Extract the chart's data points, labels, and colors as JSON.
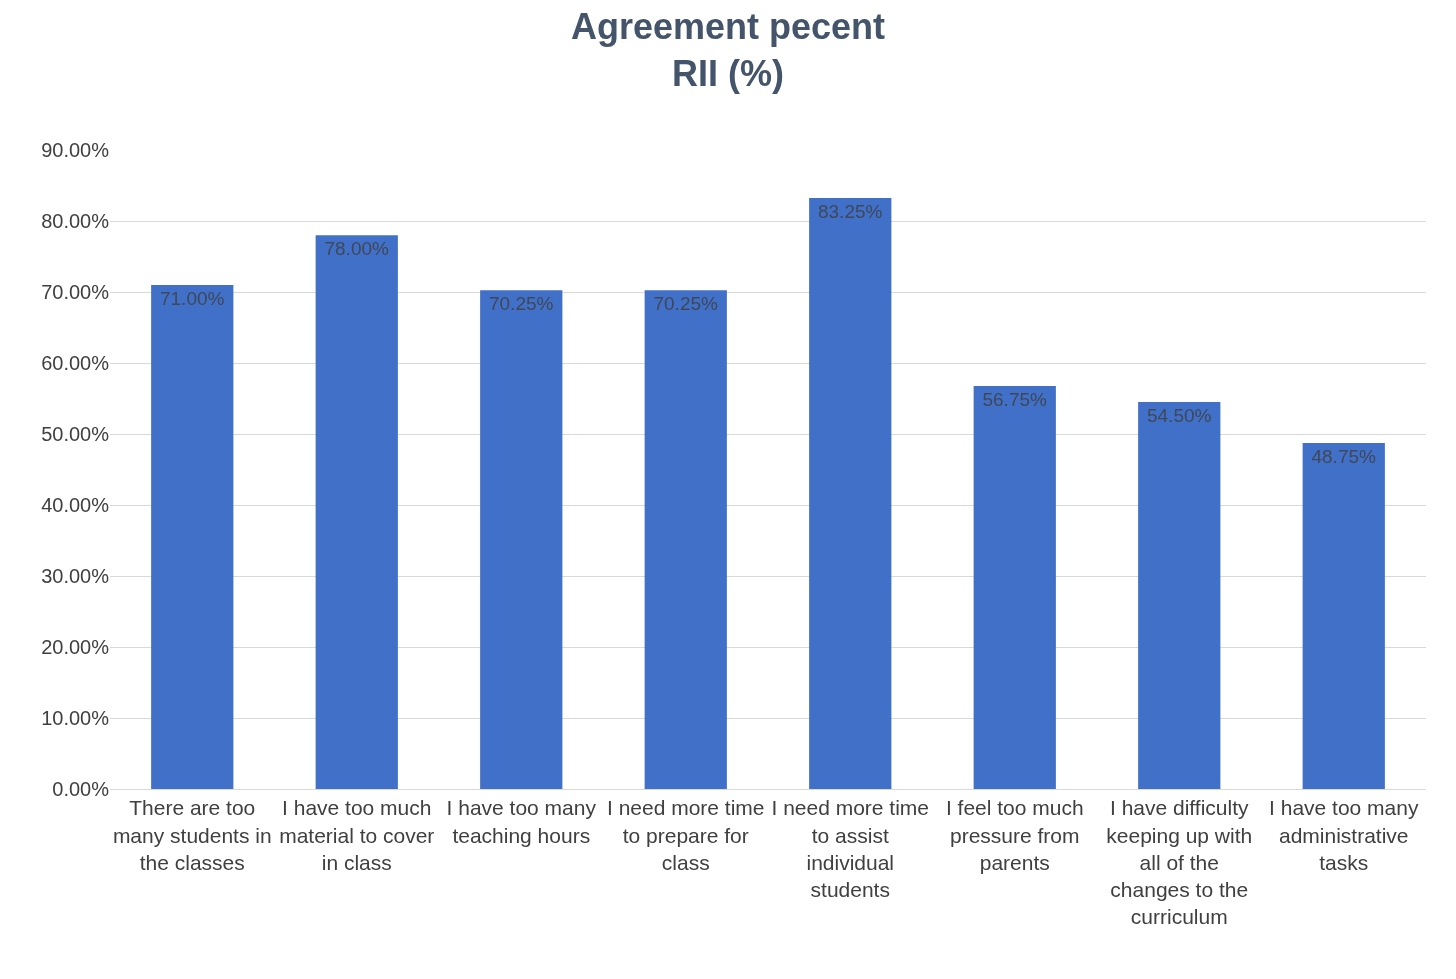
{
  "chart_data": {
    "type": "bar",
    "title": "Agreement pecent\nRII (%)",
    "categories": [
      "There are too many students in the classes",
      "I have too much material to cover in class",
      "I have too many teaching hours",
      "I need more time to prepare for class",
      "I need more time to assist individual students",
      "I feel too much pressure from parents",
      "I have difficulty keeping up with all of the changes to the curriculum",
      "I have too many administrative tasks"
    ],
    "values": [
      71,
      78,
      70.25,
      70.25,
      83.25,
      56.75,
      54.5,
      48.75
    ],
    "value_labels": [
      "71.00%",
      "78.00%",
      "70.25%",
      "70.25%",
      "83.25%",
      "56.75%",
      "54.50%",
      "48.75%"
    ],
    "color": "#4070c8",
    "ylim": [
      0,
      90
    ],
    "yticks": [
      {
        "value": 0,
        "label": "0.00%"
      },
      {
        "value": 10,
        "label": "10.00%"
      },
      {
        "value": 20,
        "label": "20.00%"
      },
      {
        "value": 30,
        "label": "30.00%"
      },
      {
        "value": 40,
        "label": "40.00%"
      },
      {
        "value": 50,
        "label": "50.00%"
      },
      {
        "value": 60,
        "label": "60.00%"
      },
      {
        "value": 70,
        "label": "70.00%"
      },
      {
        "value": 80,
        "label": "80.00%"
      },
      {
        "value": 90,
        "label": "90.00%"
      }
    ],
    "grid": "y",
    "legend": false
  }
}
